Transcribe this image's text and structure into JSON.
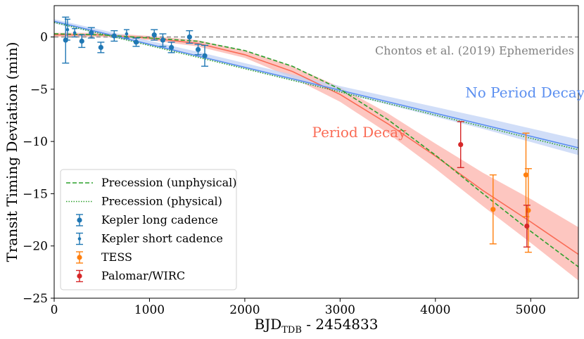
{
  "chart_data": {
    "type": "scatter",
    "xlabel_main": "BJD",
    "xlabel_sub": "TDB",
    "xlabel_rest": " - 2454833",
    "ylabel": "Transit Timing Deviation (min)",
    "xlim": [
      0,
      5500
    ],
    "ylim": [
      -25,
      3
    ],
    "xticks": [
      0,
      1000,
      2000,
      3000,
      4000,
      5000
    ],
    "yticks": [
      0,
      -5,
      -10,
      -15,
      -20,
      -25
    ],
    "grid": false,
    "legend_position": "lower-left",
    "annotations": {
      "reference": "Chontos et al. (2019) Ephemerides",
      "no_decay": "No Period Decay",
      "decay": "Period Decay"
    },
    "colors": {
      "kepler": "#1f77b4",
      "tess": "#ff7f0e",
      "palomar": "#d62728",
      "decay": "#fa6b55",
      "decay_band": "#fcb3ab",
      "no_decay": "#5b8ff0",
      "no_decay_band": "#c2d3f6",
      "precession": "#2ca02c",
      "reference": "#808080"
    },
    "series": [
      {
        "name": "Kepler long cadence",
        "kind": "points",
        "color_key": "kepler",
        "x": [
          120,
          290,
          390,
          490,
          630,
          860,
          1050,
          1140,
          1230,
          1420,
          1510,
          1580
        ],
        "y": [
          -0.3,
          -0.4,
          0.4,
          -1.0,
          0.1,
          -0.5,
          0.2,
          -0.3,
          -1.0,
          0.0,
          -1.2,
          -1.8
        ],
        "err": [
          2.2,
          0.6,
          0.5,
          0.5,
          0.5,
          0.4,
          0.5,
          0.6,
          0.5,
          0.6,
          0.5,
          1.0
        ]
      },
      {
        "name": "Kepler short cadence",
        "kind": "smallpoints",
        "color_key": "kepler",
        "x": [
          140,
          215,
          760
        ],
        "y": [
          0.7,
          0.4,
          0.3
        ],
        "err": [
          1.0,
          0.4,
          0.4
        ]
      },
      {
        "name": "TESS",
        "kind": "points",
        "color_key": "tess",
        "x": [
          4605,
          4950,
          4975
        ],
        "y": [
          -16.5,
          -13.2,
          -16.6
        ],
        "err": [
          3.3,
          4.0,
          4.0
        ]
      },
      {
        "name": "Palomar/WIRC",
        "kind": "points",
        "color_key": "palomar",
        "x": [
          4265,
          4960
        ],
        "y": [
          -10.3,
          -18.1
        ],
        "err": [
          2.2,
          2.0
        ]
      },
      {
        "name": "Period Decay",
        "kind": "model",
        "color_key": "decay",
        "x": [
          0,
          500,
          1000,
          1500,
          2000,
          2500,
          3000,
          3500,
          4000,
          4500,
          5000,
          5500
        ],
        "y": [
          0.2,
          0.2,
          -0.1,
          -0.6,
          -1.7,
          -3.3,
          -5.5,
          -8.3,
          -11.4,
          -14.7,
          -17.7,
          -20.8
        ]
      },
      {
        "name": "Period Decay band",
        "kind": "band",
        "color_key": "decay_band",
        "x": [
          0,
          500,
          1000,
          1500,
          2000,
          2500,
          3000,
          3500,
          4000,
          4500,
          5000,
          5500
        ],
        "y_low": [
          0.0,
          0.0,
          -0.3,
          -0.9,
          -2.0,
          -3.9,
          -6.2,
          -9.2,
          -12.6,
          -16.2,
          -19.7,
          -23.3
        ],
        "y_high": [
          0.4,
          0.4,
          0.1,
          -0.3,
          -1.3,
          -2.8,
          -4.8,
          -7.3,
          -10.2,
          -13.0,
          -15.5,
          -18.2
        ]
      },
      {
        "name": "No Period Decay",
        "kind": "model",
        "color_key": "no_decay",
        "x": [
          0,
          5500
        ],
        "y": [
          1.5,
          -10.6
        ]
      },
      {
        "name": "No Period Decay band",
        "kind": "band",
        "color_key": "no_decay_band",
        "x": [
          0,
          1500,
          3000,
          4500,
          5500
        ],
        "y_low": [
          1.3,
          -1.9,
          -5.3,
          -8.8,
          -11.3
        ],
        "y_high": [
          1.7,
          -1.4,
          -4.7,
          -7.7,
          -9.8
        ]
      },
      {
        "name": "Precession (unphysical)",
        "kind": "dashed",
        "color_key": "precession",
        "x": [
          0,
          500,
          1000,
          1500,
          2000,
          2500,
          3000,
          3500,
          4000,
          4500,
          5000,
          5500
        ],
        "y": [
          0.3,
          0.2,
          -0.1,
          -0.4,
          -1.3,
          -2.8,
          -5.0,
          -7.9,
          -11.3,
          -15.0,
          -18.6,
          -22.0
        ]
      },
      {
        "name": "Precession (physical)",
        "kind": "dotted",
        "color_key": "precession",
        "x": [
          0,
          5500
        ],
        "y": [
          1.4,
          -10.8
        ]
      }
    ]
  }
}
